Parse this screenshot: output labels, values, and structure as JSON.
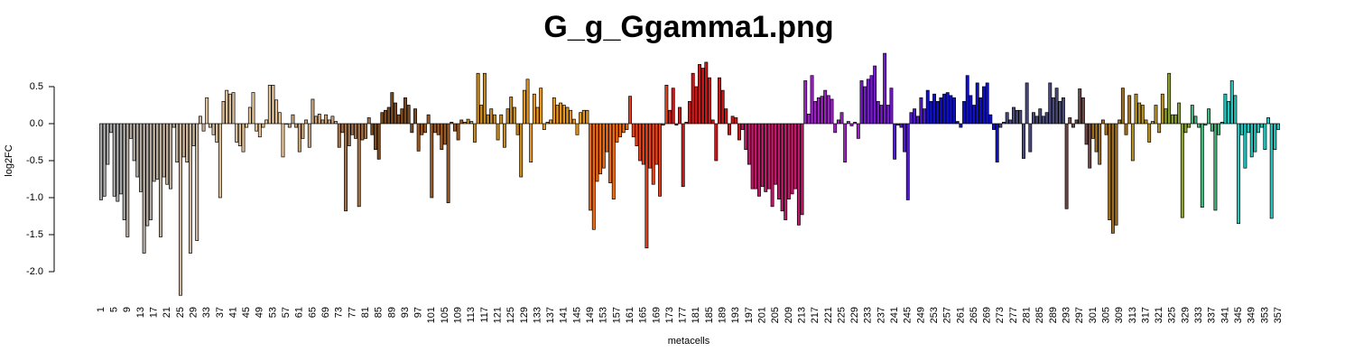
{
  "chart_data": {
    "type": "bar",
    "title": "G_g_Ggamma1.png",
    "x_label": "metacells",
    "y_label": "log2FC",
    "ylim": [
      -2.4,
      1.0
    ],
    "yticks": [
      {
        "value": -2,
        "label": "-2.0"
      },
      -1.5,
      {
        "value": -1,
        "label": "-1.0"
      },
      -0.5,
      {
        "value": 0,
        "label": "0.0"
      },
      0.5
    ],
    "categories": [
      "1",
      null,
      null,
      null,
      "5",
      null,
      null,
      null,
      "9",
      null,
      null,
      null,
      "13",
      null,
      null,
      null,
      "17",
      null,
      null,
      null,
      "21",
      null,
      null,
      null,
      "25",
      null,
      null,
      null,
      "29",
      null,
      null,
      null,
      "33",
      null,
      null,
      null,
      "37",
      null,
      null,
      null,
      "41",
      null,
      null,
      null,
      "45",
      null,
      null,
      null,
      "49",
      null,
      null,
      null,
      "53",
      null,
      null,
      null,
      "57",
      null,
      null,
      null,
      "61",
      null,
      null,
      null,
      "65",
      null,
      null,
      null,
      "69",
      null,
      null,
      null,
      "73",
      null,
      null,
      null,
      "77",
      null,
      null,
      null,
      "81",
      null,
      null,
      null,
      "85",
      null,
      null,
      null,
      "89",
      null,
      null,
      null,
      "93",
      null,
      null,
      null,
      "97",
      null,
      null,
      null,
      "101",
      null,
      null,
      null,
      "105",
      null,
      null,
      null,
      "109",
      null,
      null,
      null,
      "113",
      null,
      null,
      null,
      "117",
      null,
      null,
      null,
      "121",
      null,
      null,
      null,
      "125",
      null,
      null,
      null,
      "129",
      null,
      null,
      null,
      "133",
      null,
      null,
      null,
      "137",
      null,
      null,
      null,
      "141",
      null,
      null,
      null,
      "145",
      null,
      null,
      null,
      "149",
      null,
      null,
      null,
      "153",
      null,
      null,
      null,
      "157",
      null,
      null,
      null,
      "161",
      null,
      null,
      null,
      "165",
      null,
      null,
      null,
      "169",
      null,
      null,
      null,
      "173",
      null,
      null,
      null,
      "177",
      null,
      null,
      null,
      "181",
      null,
      null,
      null,
      "185",
      null,
      null,
      null,
      "189",
      null,
      null,
      null,
      "193",
      null,
      null,
      null,
      "197",
      null,
      null,
      null,
      "201",
      null,
      null,
      null,
      "205",
      null,
      null,
      null,
      "209",
      null,
      null,
      null,
      "213",
      null,
      null,
      null,
      "217",
      null,
      null,
      null,
      "221",
      null,
      null,
      null,
      "225",
      null,
      null,
      null,
      "229",
      null,
      null,
      null,
      "233",
      null,
      null,
      null,
      "237",
      null,
      null,
      null,
      "241",
      null,
      null,
      null,
      "245",
      null,
      null,
      null,
      "249",
      null,
      null,
      null,
      "253",
      null,
      null,
      null,
      "257",
      null,
      null,
      null,
      "261",
      null,
      null,
      null,
      "265",
      null,
      null,
      null,
      "269",
      null,
      null,
      null,
      "273",
      null,
      null,
      null,
      "277",
      null,
      null,
      null,
      "281",
      null,
      null,
      null,
      "285",
      null,
      null,
      null,
      "289",
      null,
      null,
      null,
      "293",
      null,
      null,
      null,
      "297",
      null,
      null,
      null,
      "301",
      null,
      null,
      null,
      "305",
      null,
      null,
      null,
      "309",
      null,
      null,
      null,
      "313",
      null,
      null,
      null,
      "317",
      null,
      null,
      null,
      "321",
      null,
      null,
      null,
      "325",
      null,
      null,
      null,
      "329",
      null,
      null,
      null,
      "333",
      null,
      null,
      null,
      "337",
      null,
      null,
      null,
      "341",
      null,
      null,
      null,
      "345",
      null,
      null,
      null,
      "349",
      null,
      null,
      null,
      "353",
      null,
      null,
      null,
      "357"
    ],
    "values": [
      -1.03,
      -0.98,
      -0.55,
      -0.12,
      -0.98,
      -1.05,
      -0.95,
      -1.3,
      -1.53,
      -0.2,
      -0.5,
      -0.72,
      -0.92,
      -1.75,
      -1.38,
      -1.3,
      -0.78,
      -0.75,
      -1.53,
      -0.72,
      -0.82,
      -0.88,
      -0.05,
      -0.52,
      -2.32,
      -0.45,
      -0.52,
      -1.75,
      -0.3,
      -1.58,
      0.1,
      -0.1,
      0.35,
      -0.05,
      -0.15,
      -0.25,
      -1.0,
      0.3,
      0.45,
      0.4,
      0.42,
      -0.25,
      -0.3,
      -0.38,
      -0.05,
      0.22,
      0.42,
      -0.1,
      -0.18,
      -0.05,
      0.05,
      0.52,
      0.52,
      0.32,
      0.15,
      -0.45,
      0.0,
      -0.05,
      0.12,
      -0.05,
      -0.38,
      -0.2,
      0.05,
      -0.32,
      0.33,
      0.1,
      0.13,
      0.05,
      0.12,
      0.05,
      0.1,
      0.03,
      -0.32,
      -0.12,
      -1.18,
      -0.3,
      -0.15,
      -0.2,
      -1.12,
      -0.22,
      -0.2,
      0.08,
      -0.15,
      -0.35,
      -0.48,
      0.15,
      0.18,
      0.22,
      0.42,
      0.28,
      0.12,
      0.2,
      0.35,
      0.25,
      -0.12,
      0.2,
      -0.37,
      -0.15,
      -0.12,
      0.12,
      -1.0,
      -0.12,
      -0.15,
      -0.35,
      -0.28,
      -1.07,
      0.02,
      -0.1,
      -0.22,
      0.05,
      0.02,
      0.06,
      0.03,
      -0.25,
      0.68,
      0.25,
      0.68,
      0.12,
      0.2,
      0.12,
      -0.22,
      0.12,
      -0.32,
      0.2,
      0.36,
      0.22,
      -0.15,
      -0.72,
      0.45,
      0.6,
      -0.52,
      0.4,
      0.22,
      0.48,
      -0.08,
      0.02,
      0.05,
      0.35,
      0.25,
      0.28,
      0.25,
      0.22,
      0.18,
      0.06,
      -0.15,
      0.15,
      0.18,
      0.18,
      -1.17,
      -1.43,
      -0.78,
      -0.68,
      -0.6,
      -0.38,
      -0.8,
      -1.02,
      -0.25,
      -0.18,
      -0.12,
      -0.08,
      0.37,
      -0.18,
      -0.3,
      -0.5,
      -0.55,
      -1.68,
      -0.6,
      -0.82,
      -0.55,
      -0.98,
      -0.02,
      0.52,
      0.18,
      0.48,
      -0.02,
      0.22,
      -0.85,
      0.02,
      0.3,
      0.68,
      0.5,
      0.8,
      0.75,
      0.83,
      0.62,
      0.05,
      -0.5,
      0.62,
      0.45,
      0.2,
      -0.15,
      0.1,
      0.08,
      -0.22,
      -0.08,
      -0.35,
      -0.55,
      -0.88,
      -0.88,
      -0.98,
      -0.85,
      -0.92,
      -0.88,
      -1.12,
      -0.82,
      -1.02,
      -1.18,
      -1.3,
      -1.02,
      -0.95,
      -0.88,
      -1.37,
      -1.23,
      0.58,
      0.13,
      0.65,
      0.3,
      0.35,
      0.37,
      0.45,
      0.38,
      0.33,
      -0.12,
      0.05,
      0.15,
      -0.52,
      0.03,
      -0.03,
      0.02,
      -0.2,
      0.58,
      0.5,
      0.6,
      0.65,
      0.78,
      0.3,
      0.25,
      0.95,
      0.25,
      0.48,
      -0.48,
      -0.02,
      -0.05,
      -0.38,
      -1.03,
      0.15,
      0.2,
      0.1,
      0.35,
      0.2,
      0.45,
      0.3,
      0.4,
      0.3,
      0.35,
      0.4,
      0.42,
      0.38,
      0.35,
      0.03,
      -0.05,
      0.3,
      0.65,
      0.38,
      0.25,
      0.55,
      0.35,
      0.5,
      0.55,
      0.12,
      -0.08,
      -0.52,
      -0.05,
      0.02,
      0.15,
      0.05,
      0.22,
      0.18,
      0.18,
      -0.47,
      0.55,
      -0.38,
      0.15,
      0.1,
      0.2,
      0.1,
      0.15,
      0.55,
      0.35,
      0.48,
      0.3,
      0.35,
      -1.15,
      0.08,
      -0.05,
      0.05,
      0.47,
      0.35,
      -0.28,
      -0.6,
      -0.2,
      -0.38,
      -0.55,
      0.05,
      -0.15,
      -1.3,
      -1.48,
      -1.37,
      0.05,
      0.48,
      -0.15,
      0.38,
      -0.5,
      0.4,
      0.28,
      0.25,
      0.05,
      -0.25,
      0.03,
      0.25,
      -0.12,
      0.4,
      0.2,
      0.68,
      0.12,
      0.12,
      0.28,
      -1.27,
      -0.12,
      -0.05,
      0.25,
      0.1,
      -0.05,
      -1.13,
      -0.02,
      0.2,
      -0.1,
      -1.17,
      -0.15,
      0.02,
      0.4,
      0.3,
      0.58,
      0.38,
      -1.35,
      -0.15,
      -0.6,
      -0.12,
      -0.45,
      -0.38,
      -0.12,
      -0.05,
      -0.35,
      0.08,
      -1.28,
      -0.35,
      -0.08
    ],
    "colors": [
      "#a8a8a8",
      "#a8a8a8",
      "#a8a8a8",
      "#a8a8a8",
      "#a8a8a8",
      "#a8a8a8",
      "#a8a8a8",
      "#a8a8a8",
      "#b3aba2",
      "#b3aba2",
      "#b3aba2",
      "#b3aba2",
      "#b3aba2",
      "#b3aba2",
      "#b3aba2",
      "#b3aba2",
      "#bfb09e",
      "#bfb09e",
      "#bfb09e",
      "#bfb09e",
      "#bfb09e",
      "#bfb09e",
      "#bfb09e",
      "#bfb09e",
      "#cdb79e",
      "#cdb79e",
      "#cdb79e",
      "#cdb79e",
      "#cdb79e",
      "#cdb79e",
      "#cdb79e",
      "#cdb79e",
      "#dcc09a",
      "#dcc09a",
      "#dcc09a",
      "#dcc09a",
      "#dcc09a",
      "#dcc09a",
      "#dcc09a",
      "#dcc09a",
      "#dcc09a",
      "#dcc09a",
      "#dcc09a",
      "#dcc09a",
      "#e8c597",
      "#e8c597",
      "#e8c597",
      "#e8c597",
      "#e8c597",
      "#e8c597",
      "#e8c597",
      "#e8c597",
      "#e8c597",
      "#e8c597",
      "#e8c597",
      "#e8c597",
      "#c9a47a",
      "#c9a47a",
      "#c9a47a",
      "#c9a47a",
      "#c9a47a",
      "#c9a47a",
      "#c9a47a",
      "#c9a47a",
      "#c9a47a",
      "#c9a47a",
      "#c9a47a",
      "#c9a47a",
      "#c9a47a",
      "#c9a47a",
      "#c9a47a",
      "#c9a47a",
      "#a0714a",
      "#a0714a",
      "#a0714a",
      "#a0714a",
      "#a0714a",
      "#a0714a",
      "#a0714a",
      "#a0714a",
      "#a0714a",
      "#a0714a",
      "#7b4a1e",
      "#7b4a1e",
      "#7b4a1e",
      "#7b4a1e",
      "#7b4a1e",
      "#7b4a1e",
      "#7b4a1e",
      "#7b4a1e",
      "#7b4a1e",
      "#7b4a1e",
      "#7b4a1e",
      "#7b4a1e",
      "#7b4a1e",
      "#7b4a1e",
      "#9c5a22",
      "#9c5a22",
      "#9c5a22",
      "#9c5a22",
      "#9c5a22",
      "#9c5a22",
      "#9c5a22",
      "#9c5a22",
      "#9c5a22",
      "#9c5a22",
      "#9c5a22",
      "#9c5a22",
      "#9c5a22",
      "#9c5a22",
      "#c98a20",
      "#c98a20",
      "#c98a20",
      "#c98a20",
      "#c98a20",
      "#c98a20",
      "#c98a20",
      "#c98a20",
      "#c98a20",
      "#c98a20",
      "#c98a20",
      "#c98a20",
      "#c98a20",
      "#c98a20",
      "#c98a20",
      "#c98a20",
      "#c98a20",
      "#c98a20",
      "#e8971c",
      "#e8971c",
      "#e8971c",
      "#e8971c",
      "#e8971c",
      "#e8971c",
      "#e8971c",
      "#e8971c",
      "#e8971c",
      "#e8971c",
      "#e8971c",
      "#e8971c",
      "#e8971c",
      "#e8971c",
      "#e8971c",
      "#e8971c",
      "#e8971c",
      "#e8971c",
      "#e8971c",
      "#e8971c",
      "#f06a10",
      "#f06a10",
      "#f06a10",
      "#f06a10",
      "#f06a10",
      "#f06a10",
      "#f06a10",
      "#f06a10",
      "#f06a10",
      "#f06a10",
      "#f06a10",
      "#f06a10",
      "#e84018",
      "#e84018",
      "#e84018",
      "#e84018",
      "#e84018",
      "#e84018",
      "#e84018",
      "#e84018",
      "#e84018",
      "#e84018",
      "#e84018",
      "#e84018",
      "#d01818",
      "#d01818",
      "#d01818",
      "#d01818",
      "#d01818",
      "#d01818",
      "#d01818",
      "#d01818",
      "#d01818",
      "#d01818",
      "#d01818",
      "#d01818",
      "#d01818",
      "#d01818",
      "#d01818",
      "#d01818",
      "#d01818",
      "#d01818",
      "#d01818",
      "#d01818",
      "#d01818",
      "#d01818",
      "#c0186a",
      "#c0186a",
      "#c0186a",
      "#c0186a",
      "#c0186a",
      "#c0186a",
      "#c0186a",
      "#c0186a",
      "#c0186a",
      "#c0186a",
      "#c0186a",
      "#c0186a",
      "#c0186a",
      "#c0186a",
      "#c0186a",
      "#c0186a",
      "#c0186a",
      "#c0186a",
      "#c0186a",
      "#a020c8",
      "#a020c8",
      "#a020c8",
      "#a020c8",
      "#a020c8",
      "#a020c8",
      "#a020c8",
      "#a020c8",
      "#a020c8",
      "#a020c8",
      "#a020c8",
      "#a020c8",
      "#a020c8",
      "#a020c8",
      "#a020c8",
      "#a020c8",
      "#a020c8",
      "#7818d0",
      "#7818d0",
      "#7818d0",
      "#7818d0",
      "#7818d0",
      "#7818d0",
      "#7818d0",
      "#7818d0",
      "#7818d0",
      "#7818d0",
      "#5018d0",
      "#5018d0",
      "#5018d0",
      "#5018d0",
      "#5018d0",
      "#5018d0",
      "#5018d0",
      "#5018d0",
      "#5018d0",
      "#5018d0",
      "#1010c8",
      "#1010c8",
      "#1010c8",
      "#1010c8",
      "#1010c8",
      "#1010c8",
      "#1010c8",
      "#1010c8",
      "#1010c8",
      "#1010c8",
      "#1010c8",
      "#1010c8",
      "#1010c8",
      "#1010c8",
      "#1010c8",
      "#1010c8",
      "#1010c8",
      "#1010c8",
      "#1010c8",
      "#1010c8",
      "#1010c8",
      "#1010c8",
      "#4a4a7a",
      "#4a4a7a",
      "#4a4a7a",
      "#4a4a7a",
      "#4a4a7a",
      "#4a4a7a",
      "#4a4a7a",
      "#4a4a7a",
      "#4a4a7a",
      "#4a4a7a",
      "#4a4a7a",
      "#4a4a7a",
      "#4a4a7a",
      "#4a4a7a",
      "#4a4a7a",
      "#4a4a7a",
      "#4a4a7a",
      "#4a4a7a",
      "#4a4a7a",
      "#4a4a7a",
      "#6a4848",
      "#6a4848",
      "#6a4848",
      "#6a4848",
      "#6a4848",
      "#6a4848",
      "#6a4848",
      "#6a4848",
      "#a06e20",
      "#a06e20",
      "#a06e20",
      "#a06e20",
      "#a06e20",
      "#a06e20",
      "#a06e20",
      "#a06e20",
      "#a06e20",
      "#a06e20",
      "#a06e20",
      "#a06e20",
      "#b8901c",
      "#b8901c",
      "#b8901c",
      "#b8901c",
      "#b8901c",
      "#b8901c",
      "#b8901c",
      "#b8901c",
      "#b8901c",
      "#b8901c",
      "#8aa030",
      "#8aa030",
      "#8aa030",
      "#8aa030",
      "#8aa030",
      "#8aa030",
      "#8aa030",
      "#8aa030",
      "#40b878",
      "#40b878",
      "#40b878",
      "#40b878",
      "#40b878",
      "#40b878",
      "#40b878",
      "#40b878",
      "#40b878",
      "#40b878",
      "#20c8c0",
      "#20c8c0",
      "#20c8c0",
      "#20c8c0",
      "#20c8c0",
      "#20c8c0",
      "#20c8c0",
      "#20c8c0",
      "#20c8c0",
      "#20c8c0",
      "#20c8c0",
      "#20c8c0",
      "#20c8c0",
      "#20c8c0",
      "#20c8c0",
      "#20c8c0",
      "#20c8c0"
    ]
  }
}
